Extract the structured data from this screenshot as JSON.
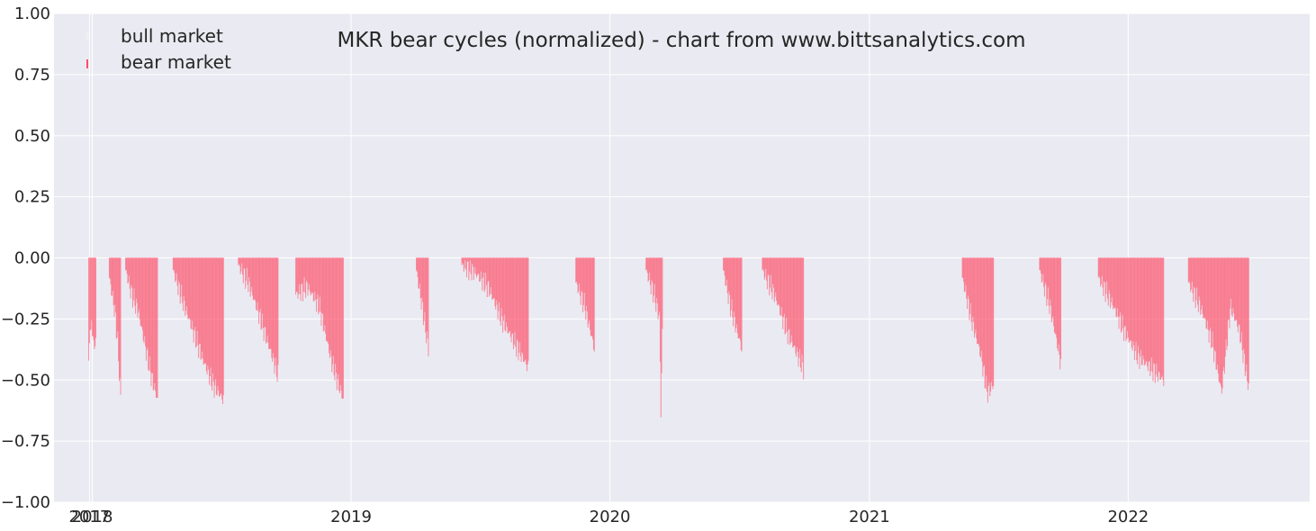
{
  "chart_data": {
    "type": "bar",
    "title": "MKR bear cycles (normalized)  - chart from www.bittsanalytics.com",
    "xlabel": "",
    "ylabel": "",
    "ylim": [
      -1.0,
      1.0
    ],
    "xlim": [
      "2017-11-08",
      "2022-09-14"
    ],
    "y_ticks": [
      "1.00",
      "0.75",
      "0.50",
      "0.25",
      "0.00",
      "−0.25",
      "−0.50",
      "−0.75",
      "−1.00"
    ],
    "y_tick_values": [
      1.0,
      0.75,
      0.5,
      0.25,
      0.0,
      -0.25,
      -0.5,
      -0.75,
      -1.0
    ],
    "x_ticks": [
      {
        "label": "2017",
        "date": "2017-12-28"
      },
      {
        "label": "2018",
        "date": "2018-01-01"
      },
      {
        "label": "2019",
        "date": "2019-01-01"
      },
      {
        "label": "2020",
        "date": "2020-01-01"
      },
      {
        "label": "2021",
        "date": "2021-01-01"
      },
      {
        "label": "2022",
        "date": "2022-01-01"
      }
    ],
    "grid": true,
    "legend_position": "top-left",
    "series": [
      {
        "name": "bull market",
        "color": "#f0f0f0",
        "segments": []
      },
      {
        "name": "bear market",
        "color": "#ff4d66",
        "segments": [
          {
            "start": "2017-12-27",
            "end": "2017-12-31",
            "points": [
              [
                0,
                -0.42
              ],
              [
                0.5,
                -0.3
              ],
              [
                1,
                -0.25
              ]
            ]
          },
          {
            "start": "2018-01-01",
            "end": "2018-01-06",
            "points": [
              [
                0,
                -0.32
              ],
              [
                0.5,
                -0.35
              ],
              [
                1,
                -0.36
              ]
            ]
          },
          {
            "start": "2018-01-25",
            "end": "2018-02-10",
            "points": [
              [
                0,
                -0.08
              ],
              [
                0.25,
                -0.15
              ],
              [
                0.5,
                -0.22
              ],
              [
                0.75,
                -0.35
              ],
              [
                1,
                -0.58
              ]
            ]
          },
          {
            "start": "2018-02-17",
            "end": "2018-04-03",
            "points": [
              [
                0,
                -0.05
              ],
              [
                0.2,
                -0.15
              ],
              [
                0.4,
                -0.22
              ],
              [
                0.6,
                -0.35
              ],
              [
                0.8,
                -0.48
              ],
              [
                1,
                -0.58
              ]
            ]
          },
          {
            "start": "2018-04-25",
            "end": "2018-07-05",
            "points": [
              [
                0,
                -0.05
              ],
              [
                0.2,
                -0.18
              ],
              [
                0.4,
                -0.3
              ],
              [
                0.6,
                -0.42
              ],
              [
                0.8,
                -0.52
              ],
              [
                1,
                -0.58
              ]
            ]
          },
          {
            "start": "2018-07-26",
            "end": "2018-09-20",
            "points": [
              [
                0,
                -0.03
              ],
              [
                0.25,
                -0.1
              ],
              [
                0.5,
                -0.22
              ],
              [
                0.75,
                -0.35
              ],
              [
                1,
                -0.48
              ]
            ]
          },
          {
            "start": "2018-10-15",
            "end": "2018-12-21",
            "points": [
              [
                0,
                -0.15
              ],
              [
                0.25,
                -0.12
              ],
              [
                0.5,
                -0.2
              ],
              [
                0.75,
                -0.42
              ],
              [
                1,
                -0.58
              ]
            ]
          },
          {
            "start": "2019-04-03",
            "end": "2019-04-20",
            "points": [
              [
                0,
                -0.05
              ],
              [
                0.5,
                -0.2
              ],
              [
                1,
                -0.37
              ]
            ]
          },
          {
            "start": "2019-06-06",
            "end": "2019-09-08",
            "points": [
              [
                0,
                -0.03
              ],
              [
                0.2,
                -0.06
              ],
              [
                0.4,
                -0.12
              ],
              [
                0.6,
                -0.25
              ],
              [
                0.8,
                -0.35
              ],
              [
                1,
                -0.45
              ]
            ]
          },
          {
            "start": "2019-11-14",
            "end": "2019-12-10",
            "points": [
              [
                0,
                -0.1
              ],
              [
                0.5,
                -0.2
              ],
              [
                1,
                -0.37
              ]
            ]
          },
          {
            "start": "2020-02-21",
            "end": "2020-03-15",
            "points": [
              [
                0,
                -0.05
              ],
              [
                0.5,
                -0.15
              ],
              [
                0.85,
                -0.25
              ],
              [
                0.9,
                -0.69
              ],
              [
                1,
                -0.3
              ]
            ]
          },
          {
            "start": "2020-06-09",
            "end": "2020-07-05",
            "points": [
              [
                0,
                -0.05
              ],
              [
                0.4,
                -0.2
              ],
              [
                0.75,
                -0.3
              ],
              [
                1,
                -0.37
              ]
            ]
          },
          {
            "start": "2020-08-03",
            "end": "2020-09-30",
            "points": [
              [
                0,
                -0.05
              ],
              [
                0.3,
                -0.15
              ],
              [
                0.6,
                -0.3
              ],
              [
                1,
                -0.45
              ]
            ]
          },
          {
            "start": "2021-05-12",
            "end": "2021-06-25",
            "points": [
              [
                0,
                -0.08
              ],
              [
                0.3,
                -0.25
              ],
              [
                0.6,
                -0.4
              ],
              [
                0.8,
                -0.55
              ],
              [
                1,
                -0.52
              ]
            ]
          },
          {
            "start": "2021-08-29",
            "end": "2021-09-28",
            "points": [
              [
                0,
                -0.05
              ],
              [
                0.5,
                -0.2
              ],
              [
                1,
                -0.43
              ]
            ]
          },
          {
            "start": "2021-11-20",
            "end": "2022-02-20",
            "points": [
              [
                0,
                -0.08
              ],
              [
                0.2,
                -0.18
              ],
              [
                0.4,
                -0.3
              ],
              [
                0.6,
                -0.4
              ],
              [
                0.8,
                -0.45
              ],
              [
                1,
                -0.5
              ]
            ]
          },
          {
            "start": "2022-03-27",
            "end": "2022-06-20",
            "points": [
              [
                0,
                -0.1
              ],
              [
                0.2,
                -0.2
              ],
              [
                0.4,
                -0.35
              ],
              [
                0.55,
                -0.55
              ],
              [
                0.7,
                -0.2
              ],
              [
                0.85,
                -0.3
              ],
              [
                1,
                -0.53
              ]
            ]
          }
        ]
      }
    ]
  }
}
